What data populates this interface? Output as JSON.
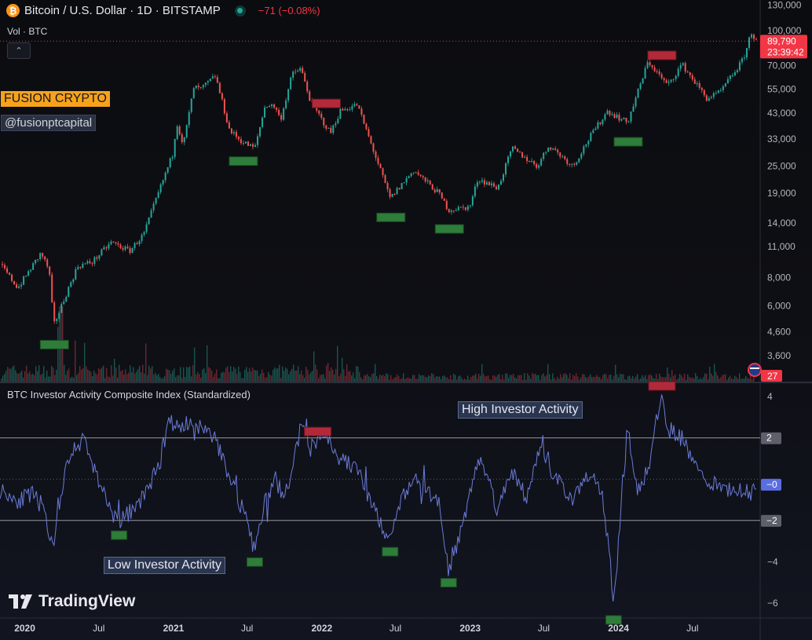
{
  "header": {
    "title": "Bitcoin / U.S. Dollar · 1D · BITSTAMP",
    "change": "−71 (−0.08%)",
    "volume_label": "Vol · BTC",
    "collapse_symbol": "⌃"
  },
  "watermarks": {
    "brand": "FUSION CRYPTO",
    "handle": "@fusionptcapital",
    "platform": "TradingView"
  },
  "colors": {
    "up": "#26a69a",
    "down": "#ef5350",
    "index_line": "#6b7bd8",
    "bottom_marker": "#2e7d3a",
    "top_marker": "#b22a3a",
    "last_price_label": "#f23645",
    "brand_tag": "#f7a21b"
  },
  "price_axis": {
    "ticks": [
      "130,000",
      "100,000",
      "70,000",
      "55,000",
      "43,000",
      "33,000",
      "25,000",
      "19,000",
      "14,000",
      "11,000",
      "8,000",
      "6,000",
      "4,600",
      "3,600"
    ],
    "last_price": "89,790",
    "countdown": "23:39:42",
    "volume_value": "27"
  },
  "indicator": {
    "title": "BTC Investor Activity Composite Index (Standardized)",
    "high_label": "High Investor Activity",
    "low_label": "Low Investor Activity",
    "ticks": [
      "4",
      "2",
      "0",
      "−2",
      "−4",
      "−6"
    ],
    "upper_band": "2",
    "lower_band": "−2",
    "current_value": "−0"
  },
  "time_axis": {
    "labels": [
      "2020",
      "Jul",
      "2021",
      "Jul",
      "2022",
      "Jul",
      "2023",
      "Jul",
      "2024",
      "Jul"
    ]
  },
  "chart_data": [
    {
      "type": "candlestick",
      "title": "Bitcoin / U.S. Dollar · 1D · BITSTAMP",
      "scale": "log",
      "x_range": [
        "2019-11-01",
        "2024-12-05"
      ],
      "y_range": [
        3000,
        130000
      ],
      "price_path": [
        [
          "2019-11-01",
          9200
        ],
        [
          "2019-12-15",
          7200
        ],
        [
          "2020-02-10",
          10300
        ],
        [
          "2020-03-01",
          8600
        ],
        [
          "2020-03-12",
          4900
        ],
        [
          "2020-04-15",
          7000
        ],
        [
          "2020-05-10",
          9000
        ],
        [
          "2020-06-15",
          9400
        ],
        [
          "2020-08-01",
          11500
        ],
        [
          "2020-09-15",
          10500
        ],
        [
          "2020-10-20",
          12500
        ],
        [
          "2020-11-20",
          18000
        ],
        [
          "2021-01-01",
          29000
        ],
        [
          "2021-01-08",
          40000
        ],
        [
          "2021-01-25",
          31000
        ],
        [
          "2021-02-20",
          56000
        ],
        [
          "2021-03-10",
          55000
        ],
        [
          "2021-04-14",
          63000
        ],
        [
          "2021-05-19",
          36000
        ],
        [
          "2021-06-20",
          32000
        ],
        [
          "2021-07-20",
          30000
        ],
        [
          "2021-08-15",
          47000
        ],
        [
          "2021-09-08",
          46000
        ],
        [
          "2021-09-21",
          40000
        ],
        [
          "2021-10-20",
          64000
        ],
        [
          "2021-11-10",
          68000
        ],
        [
          "2021-12-05",
          48000
        ],
        [
          "2022-01-22",
          35000
        ],
        [
          "2022-02-15",
          44000
        ],
        [
          "2022-03-29",
          47000
        ],
        [
          "2022-05-12",
          28000
        ],
        [
          "2022-06-18",
          18000
        ],
        [
          "2022-08-15",
          24000
        ],
        [
          "2022-10-15",
          19000
        ],
        [
          "2022-11-09",
          16000
        ],
        [
          "2022-12-31",
          16500
        ],
        [
          "2023-01-20",
          22000
        ],
        [
          "2023-03-10",
          20000
        ],
        [
          "2023-04-14",
          30000
        ],
        [
          "2023-06-15",
          25000
        ],
        [
          "2023-07-14",
          31000
        ],
        [
          "2023-09-11",
          25000
        ],
        [
          "2023-10-24",
          34000
        ],
        [
          "2023-12-05",
          44000
        ],
        [
          "2024-01-23",
          39000
        ],
        [
          "2024-03-14",
          73000
        ],
        [
          "2024-05-01",
          57000
        ],
        [
          "2024-06-05",
          71000
        ],
        [
          "2024-08-05",
          50000
        ],
        [
          "2024-09-06",
          53000
        ],
        [
          "2024-10-29",
          72000
        ],
        [
          "2024-11-10",
          81000
        ],
        [
          "2024-11-22",
          99000
        ],
        [
          "2024-12-05",
          89790
        ]
      ],
      "bottom_markers": [
        "2020-03-12",
        "2021-06-20",
        "2022-06-18",
        "2022-11-09",
        "2024-01-23"
      ],
      "top_markers": [
        "2022-01-10",
        "2024-04-15"
      ]
    },
    {
      "type": "line",
      "title": "BTC Investor Activity Composite Index (Standardized)",
      "y_range": [
        -6.8,
        5.0
      ],
      "bands": [
        2,
        0,
        -2
      ],
      "series": [
        {
          "values": [
            [
              "2019-11-01",
              -0.5
            ],
            [
              "2019-12-15",
              -1.0
            ],
            [
              "2020-01-20",
              -0.8
            ],
            [
              "2020-02-10",
              -1.2
            ],
            [
              "2020-03-12",
              -3.2
            ],
            [
              "2020-04-15",
              0.8
            ],
            [
              "2020-05-01",
              1.5
            ],
            [
              "2020-05-25",
              2.0
            ],
            [
              "2020-06-20",
              0.5
            ],
            [
              "2020-07-20",
              -1.0
            ],
            [
              "2020-08-20",
              -2.2
            ],
            [
              "2020-09-20",
              -1.5
            ],
            [
              "2020-10-20",
              -0.8
            ],
            [
              "2020-11-15",
              0.2
            ],
            [
              "2020-12-01",
              1.0
            ],
            [
              "2020-12-20",
              3.0
            ],
            [
              "2021-01-10",
              2.5
            ],
            [
              "2021-02-05",
              2.8
            ],
            [
              "2021-02-20",
              2.2
            ],
            [
              "2021-03-10",
              2.5
            ],
            [
              "2021-04-14",
              2.0
            ],
            [
              "2021-05-01",
              1.0
            ],
            [
              "2021-05-25",
              0.0
            ],
            [
              "2021-06-20",
              -1.5
            ],
            [
              "2021-07-20",
              -3.5
            ],
            [
              "2021-08-15",
              -1.0
            ],
            [
              "2021-09-10",
              0.0
            ],
            [
              "2021-10-01",
              -1.0
            ],
            [
              "2021-10-20",
              0.5
            ],
            [
              "2021-11-10",
              2.5
            ],
            [
              "2021-12-05",
              1.5
            ],
            [
              "2022-01-10",
              2.2
            ],
            [
              "2022-02-15",
              1.0
            ],
            [
              "2022-03-29",
              0.5
            ],
            [
              "2022-05-12",
              -1.5
            ],
            [
              "2022-06-18",
              -3.0
            ],
            [
              "2022-07-15",
              -1.0
            ],
            [
              "2022-08-15",
              0.0
            ],
            [
              "2022-09-15",
              -0.5
            ],
            [
              "2022-10-15",
              -1.0
            ],
            [
              "2022-11-09",
              -4.5
            ],
            [
              "2022-12-15",
              -2.0
            ],
            [
              "2023-01-20",
              1.0
            ],
            [
              "2023-02-15",
              0.0
            ],
            [
              "2023-03-10",
              -1.5
            ],
            [
              "2023-04-14",
              0.5
            ],
            [
              "2023-05-20",
              -1.0
            ],
            [
              "2023-06-20",
              1.5
            ],
            [
              "2023-07-14",
              0.5
            ],
            [
              "2023-08-20",
              -0.5
            ],
            [
              "2023-09-11",
              -1.0
            ],
            [
              "2023-10-24",
              0.5
            ],
            [
              "2023-11-20",
              -0.5
            ],
            [
              "2023-12-10",
              -3.5
            ],
            [
              "2023-12-20",
              -6.3
            ],
            [
              "2024-01-05",
              -2.0
            ],
            [
              "2024-01-23",
              2.5
            ],
            [
              "2024-02-15",
              -0.5
            ],
            [
              "2024-03-14",
              0.5
            ],
            [
              "2024-04-15",
              4.0
            ],
            [
              "2024-05-01",
              2.5
            ],
            [
              "2024-06-05",
              2.0
            ],
            [
              "2024-07-01",
              1.0
            ],
            [
              "2024-08-05",
              0.0
            ],
            [
              "2024-09-06",
              -0.5
            ],
            [
              "2024-10-29",
              -0.5
            ],
            [
              "2024-11-22",
              -0.8
            ],
            [
              "2024-12-05",
              -0.2
            ]
          ]
        }
      ],
      "bottom_markers": [
        "2020-08-20",
        "2021-07-20",
        "2022-06-18",
        "2022-11-09",
        "2023-12-20"
      ],
      "top_markers": [
        "2021-12-20",
        "2024-04-15"
      ]
    }
  ]
}
